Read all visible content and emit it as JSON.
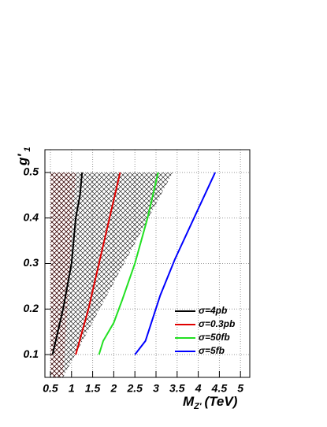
{
  "chart_data": {
    "type": "line",
    "xlabel_main": "M",
    "xlabel_sub": "Z'",
    "xlabel_unit": "(TeV)",
    "ylabel_main": "g'",
    "ylabel_sub": "1",
    "xlim": [
      0.37,
      5.22
    ],
    "ylim": [
      0.05,
      0.55
    ],
    "xticks": [
      0.5,
      1,
      1.5,
      2,
      2.5,
      3,
      3.5,
      4,
      4.5,
      5
    ],
    "yticks": [
      0.1,
      0.2,
      0.3,
      0.4,
      0.5
    ],
    "grid": true,
    "legend": "lower right",
    "regions": [
      {
        "color": "#d04040",
        "x": [
          0.5,
          1.1,
          0.8,
          0.5
        ],
        "y": [
          0.5,
          0.5,
          0.05,
          0.05
        ]
      },
      {
        "color": "#000000",
        "x": [
          0.5,
          3.4,
          0.8,
          0.5
        ],
        "y": [
          0.5,
          0.5,
          0.05,
          0.05
        ]
      }
    ],
    "series": [
      {
        "name": "σ=4pb",
        "color": "#000000",
        "x": [
          0.55,
          0.8,
          1.0,
          1.1,
          1.2,
          1.25
        ],
        "values": [
          0.1,
          0.2,
          0.3,
          0.4,
          0.45,
          0.5
        ]
      },
      {
        "name": "σ=0.3pb",
        "color": "#e00000",
        "x": [
          1.1,
          1.4,
          1.65,
          1.9,
          2.15
        ],
        "values": [
          0.1,
          0.2,
          0.3,
          0.4,
          0.5
        ]
      },
      {
        "name": "σ=50fb",
        "color": "#22e022",
        "x": [
          1.65,
          1.75,
          2.0,
          2.2,
          2.5,
          2.8,
          3.05
        ],
        "values": [
          0.1,
          0.13,
          0.17,
          0.22,
          0.3,
          0.4,
          0.5
        ]
      },
      {
        "name": "σ=5fb",
        "color": "#0000ff",
        "x": [
          2.5,
          2.75,
          3.1,
          3.45,
          3.9,
          4.4
        ],
        "values": [
          0.1,
          0.13,
          0.23,
          0.31,
          0.4,
          0.5
        ]
      }
    ]
  }
}
